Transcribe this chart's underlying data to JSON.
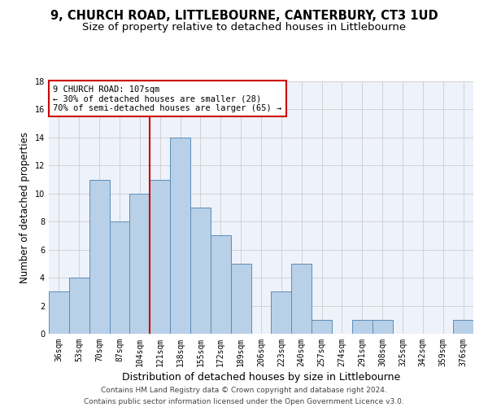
{
  "title": "9, CHURCH ROAD, LITTLEBOURNE, CANTERBURY, CT3 1UD",
  "subtitle": "Size of property relative to detached houses in Littlebourne",
  "xlabel": "Distribution of detached houses by size in Littlebourne",
  "ylabel": "Number of detached properties",
  "categories": [
    "36sqm",
    "53sqm",
    "70sqm",
    "87sqm",
    "104sqm",
    "121sqm",
    "138sqm",
    "155sqm",
    "172sqm",
    "189sqm",
    "206sqm",
    "223sqm",
    "240sqm",
    "257sqm",
    "274sqm",
    "291sqm",
    "308sqm",
    "325sqm",
    "342sqm",
    "359sqm",
    "376sqm"
  ],
  "values": [
    3,
    4,
    11,
    8,
    10,
    11,
    14,
    9,
    7,
    5,
    0,
    3,
    5,
    1,
    0,
    1,
    1,
    0,
    0,
    0,
    1
  ],
  "bar_color": "#b8d0e8",
  "bar_edge_color": "#5b8db8",
  "grid_color": "#cccccc",
  "background_color": "#eef2fa",
  "property_line_x": 4.5,
  "annotation_line1": "9 CHURCH ROAD: 107sqm",
  "annotation_line2": "← 30% of detached houses are smaller (28)",
  "annotation_line3": "70% of semi-detached houses are larger (65) →",
  "annotation_box_color": "#cc0000",
  "vline_color": "#cc0000",
  "footer_line1": "Contains HM Land Registry data © Crown copyright and database right 2024.",
  "footer_line2": "Contains public sector information licensed under the Open Government Licence v3.0.",
  "ylim": [
    0,
    18
  ],
  "yticks": [
    0,
    2,
    4,
    6,
    8,
    10,
    12,
    14,
    16,
    18
  ],
  "title_fontsize": 10.5,
  "subtitle_fontsize": 9.5,
  "ylabel_fontsize": 8.5,
  "xlabel_fontsize": 9,
  "tick_fontsize": 7,
  "annotation_fontsize": 7.5,
  "footer_fontsize": 6.5
}
